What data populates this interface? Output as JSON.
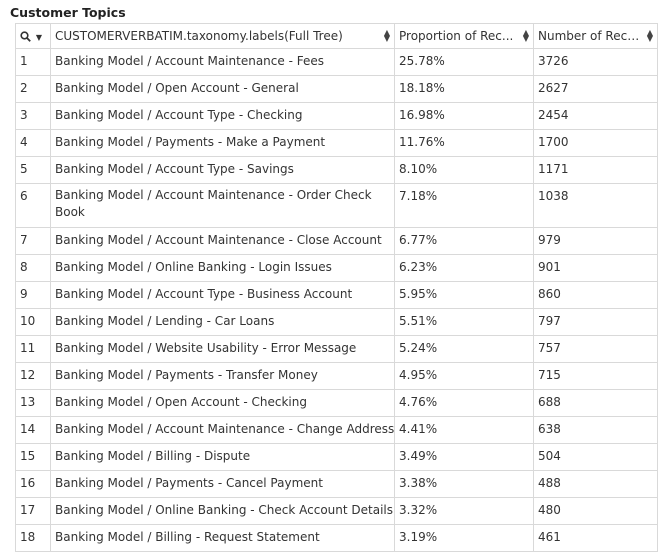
{
  "title": "Customer Topics",
  "columns": {
    "index": "",
    "label": "CUSTOMERVERBATIM.taxonomy.labels(Full Tree)",
    "proportion": "Proportion of Rec...",
    "number": "Number of Reco..."
  },
  "rows": [
    {
      "idx": "1",
      "label": "Banking Model / Account Maintenance - Fees",
      "prop": "25.78%",
      "num": "3726"
    },
    {
      "idx": "2",
      "label": "Banking Model / Open Account - General",
      "prop": "18.18%",
      "num": "2627"
    },
    {
      "idx": "3",
      "label": "Banking Model / Account Type - Checking",
      "prop": "16.98%",
      "num": "2454"
    },
    {
      "idx": "4",
      "label": "Banking Model / Payments - Make a Payment",
      "prop": "11.76%",
      "num": "1700"
    },
    {
      "idx": "5",
      "label": "Banking Model / Account Type - Savings",
      "prop": "8.10%",
      "num": "1171"
    },
    {
      "idx": "6",
      "label": "Banking Model / Account Maintenance - Order Check Book",
      "prop": "7.18%",
      "num": "1038"
    },
    {
      "idx": "7",
      "label": "Banking Model / Account Maintenance - Close Account",
      "prop": "6.77%",
      "num": "979"
    },
    {
      "idx": "8",
      "label": "Banking Model / Online Banking - Login Issues",
      "prop": "6.23%",
      "num": "901"
    },
    {
      "idx": "9",
      "label": "Banking Model / Account Type - Business Account",
      "prop": "5.95%",
      "num": "860"
    },
    {
      "idx": "10",
      "label": "Banking Model / Lending - Car Loans",
      "prop": "5.51%",
      "num": "797"
    },
    {
      "idx": "11",
      "label": "Banking Model / Website Usability - Error Message",
      "prop": "5.24%",
      "num": "757"
    },
    {
      "idx": "12",
      "label": "Banking Model / Payments - Transfer Money",
      "prop": "4.95%",
      "num": "715"
    },
    {
      "idx": "13",
      "label": "Banking Model / Open Account - Checking",
      "prop": "4.76%",
      "num": "688"
    },
    {
      "idx": "14",
      "label": "Banking Model / Account Maintenance - Change Address",
      "prop": "4.41%",
      "num": "638"
    },
    {
      "idx": "15",
      "label": "Banking Model / Billing - Dispute",
      "prop": "3.49%",
      "num": "504"
    },
    {
      "idx": "16",
      "label": "Banking Model / Payments - Cancel Payment",
      "prop": "3.38%",
      "num": "488"
    },
    {
      "idx": "17",
      "label": "Banking Model / Online Banking - Check Account Details",
      "prop": "3.32%",
      "num": "480"
    },
    {
      "idx": "18",
      "label": "Banking Model / Billing - Request Statement",
      "prop": "3.19%",
      "num": "461"
    }
  ]
}
